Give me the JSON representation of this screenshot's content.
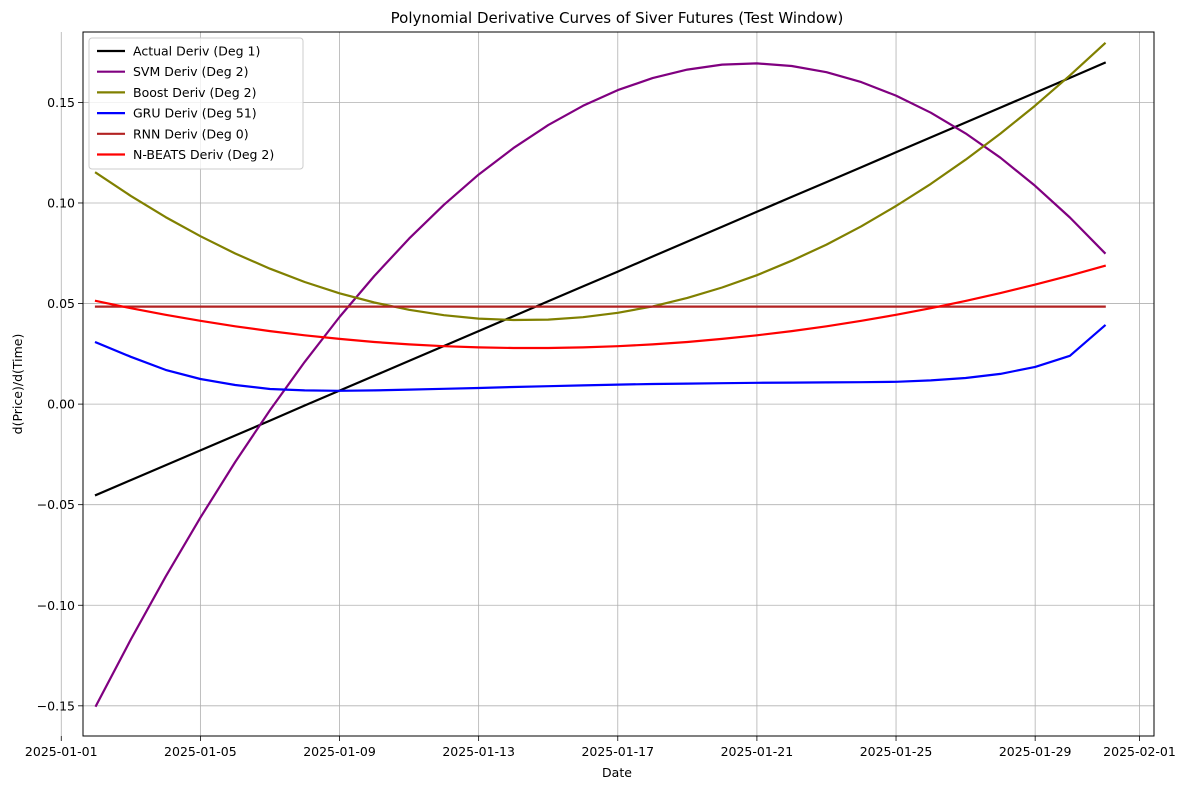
{
  "chart_data": {
    "type": "line",
    "title": "Polynomial Derivative Curves of Siver Futures (Test Window)",
    "xlabel": "Date",
    "ylabel": "d(Price)/d(Time)",
    "x_axis": {
      "type": "date",
      "range": [
        "2025-01-01T15:00",
        "2025-02-01T10:00"
      ],
      "ticks": [
        "2025-01-01",
        "2025-01-05",
        "2025-01-09",
        "2025-01-13",
        "2025-01-17",
        "2025-01-21",
        "2025-01-25",
        "2025-01-29",
        "2025-02-01"
      ]
    },
    "y_axis": {
      "range": [
        -0.165,
        0.185
      ],
      "ticks": [
        -0.15,
        -0.1,
        -0.05,
        0.0,
        0.05,
        0.1,
        0.15
      ],
      "tick_labels": [
        "−0.15",
        "−0.10",
        "−0.05",
        "0.00",
        "0.05",
        "0.10",
        "0.15"
      ]
    },
    "grid": true,
    "legend_position": "top-left",
    "x": [
      "2025-01-02",
      "2025-01-03",
      "2025-01-04",
      "2025-01-05",
      "2025-01-06",
      "2025-01-07",
      "2025-01-08",
      "2025-01-09",
      "2025-01-10",
      "2025-01-11",
      "2025-01-12",
      "2025-01-13",
      "2025-01-14",
      "2025-01-15",
      "2025-01-16",
      "2025-01-17",
      "2025-01-18",
      "2025-01-19",
      "2025-01-20",
      "2025-01-21",
      "2025-01-22",
      "2025-01-23",
      "2025-01-24",
      "2025-01-25",
      "2025-01-26",
      "2025-01-27",
      "2025-01-28",
      "2025-01-29",
      "2025-01-30",
      "2025-01-31"
    ],
    "series": [
      {
        "name": "Actual Deriv (Deg 1)",
        "color": "#000000",
        "values": [
          -0.0452,
          -0.0378,
          -0.0304,
          -0.023,
          -0.0156,
          -0.0082,
          -0.0007,
          0.0067,
          0.0141,
          0.0215,
          0.0289,
          0.0363,
          0.0437,
          0.0511,
          0.0585,
          0.0659,
          0.0734,
          0.0808,
          0.0882,
          0.0956,
          0.103,
          0.1104,
          0.1178,
          0.1252,
          0.1326,
          0.14,
          0.1474,
          0.1548,
          0.1622,
          0.1697
        ]
      },
      {
        "name": "SVM Deriv (Deg 2)",
        "color": "#800080",
        "values": [
          -0.15,
          -0.117,
          -0.0858,
          -0.0564,
          -0.0288,
          -0.003,
          0.021,
          0.0433,
          0.0637,
          0.0823,
          0.0991,
          0.1141,
          0.1273,
          0.1387,
          0.1483,
          0.1561,
          0.1621,
          0.1663,
          0.1688,
          0.1694,
          0.1681,
          0.165,
          0.1601,
          0.1534,
          0.1449,
          0.1346,
          0.1225,
          0.1085,
          0.0928,
          0.0752
        ]
      },
      {
        "name": "Boost Deriv (Deg 2)",
        "color": "#808000",
        "values": [
          0.115,
          0.1035,
          0.093,
          0.0835,
          0.0749,
          0.0673,
          0.0607,
          0.0551,
          0.0505,
          0.0469,
          0.0442,
          0.0425,
          0.0418,
          0.042,
          0.0432,
          0.0454,
          0.0486,
          0.0528,
          0.058,
          0.0641,
          0.0713,
          0.0793,
          0.0884,
          0.0985,
          0.1095,
          0.1215,
          0.1345,
          0.1484,
          0.1634,
          0.1793
        ]
      },
      {
        "name": "GRU Deriv (Deg 51)",
        "color": "#0000ff",
        "values": [
          0.0307,
          0.0235,
          0.017,
          0.0125,
          0.0095,
          0.0075,
          0.0068,
          0.0066,
          0.0068,
          0.0072,
          0.0076,
          0.008,
          0.0085,
          0.0089,
          0.0093,
          0.0097,
          0.01,
          0.0102,
          0.0104,
          0.0106,
          0.0107,
          0.0108,
          0.0109,
          0.0111,
          0.0118,
          0.013,
          0.015,
          0.0185,
          0.024,
          0.039
        ]
      },
      {
        "name": "RNN Deriv (Deg 0)",
        "color": "#b22222",
        "values": [
          0.0485,
          0.0485,
          0.0485,
          0.0485,
          0.0485,
          0.0485,
          0.0485,
          0.0485,
          0.0485,
          0.0485,
          0.0485,
          0.0485,
          0.0485,
          0.0485,
          0.0485,
          0.0485,
          0.0485,
          0.0485,
          0.0485,
          0.0485,
          0.0485,
          0.0485,
          0.0485,
          0.0485,
          0.0485,
          0.0485,
          0.0485,
          0.0485,
          0.0485,
          0.0485
        ]
      },
      {
        "name": "N-BEATS Deriv (Deg 2)",
        "color": "#ff0000",
        "values": [
          0.0513,
          0.0477,
          0.0444,
          0.0414,
          0.0387,
          0.0363,
          0.0342,
          0.0324,
          0.0309,
          0.0297,
          0.0288,
          0.0282,
          0.0279,
          0.0279,
          0.0282,
          0.0288,
          0.0297,
          0.0309,
          0.0324,
          0.0342,
          0.0363,
          0.0387,
          0.0414,
          0.0444,
          0.0477,
          0.0513,
          0.0552,
          0.0594,
          0.0639,
          0.0687
        ]
      }
    ]
  }
}
